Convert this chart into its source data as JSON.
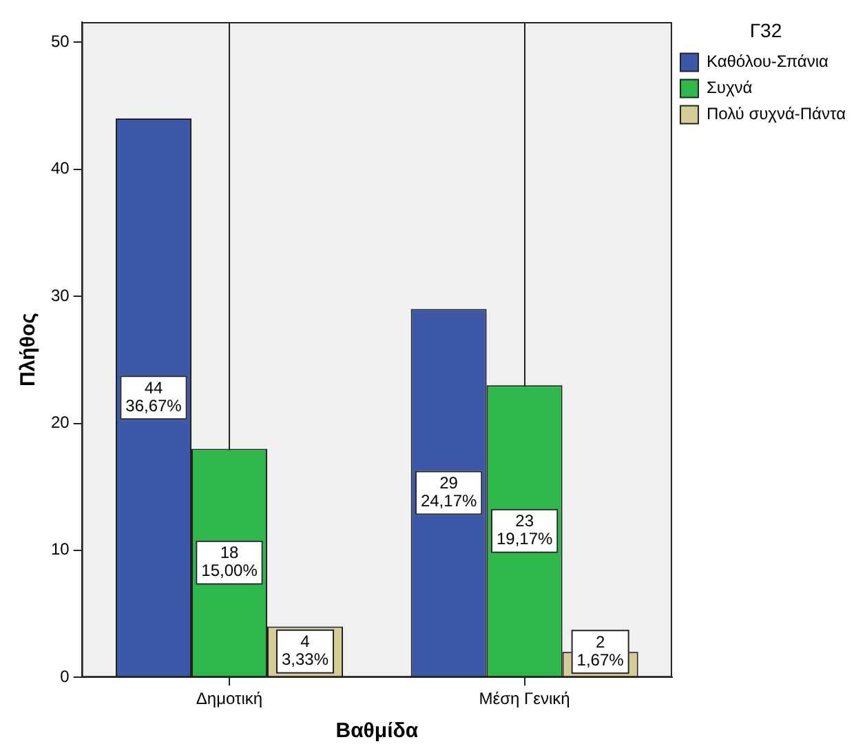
{
  "chart_data": {
    "type": "bar",
    "xlabel": "Βαθμίδα",
    "ylabel": "Πλήθος",
    "legend_title": "Γ32",
    "categories": [
      "Δημοτική",
      "Μέση Γενική"
    ],
    "series": [
      {
        "name": "Καθόλου-Σπάνια",
        "color": "#3d58a8",
        "values": [
          44,
          29
        ],
        "value_labels": [
          "44\n36,67%",
          "29\n24,17%"
        ]
      },
      {
        "name": "Συχνά",
        "color": "#2eb84b",
        "values": [
          18,
          23
        ],
        "value_labels": [
          "18\n15,00%",
          "23\n19,17%"
        ]
      },
      {
        "name": "Πολύ συχνά-Πάντα",
        "color": "#d5cd95",
        "values": [
          4,
          2
        ],
        "value_labels": [
          "4\n3,33%",
          "2\n1,67%"
        ]
      }
    ],
    "ylim": [
      0,
      51.6
    ],
    "yticks": [
      0,
      10,
      20,
      30,
      40,
      50
    ],
    "grid": "x",
    "legend": "right"
  }
}
